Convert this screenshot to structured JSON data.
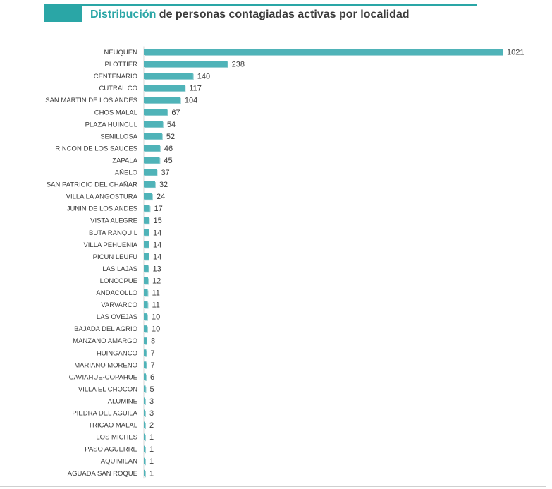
{
  "title": {
    "accent": "Distribución",
    "rest": " de personas contagiadas activas por localidad"
  },
  "colors": {
    "accent": "#2aa6a6",
    "bar": "#4fb3b8",
    "bar_shadow": "#9fd3d6",
    "text": "#3a3a3a"
  },
  "chart_data": {
    "type": "bar",
    "orientation": "horizontal",
    "title": "Distribución de personas contagiadas activas por localidad",
    "xlabel": "",
    "ylabel": "",
    "xlim": [
      0,
      1021
    ],
    "grid": false,
    "legend": "none",
    "categories": [
      "NEUQUEN",
      "PLOTTIER",
      "CENTENARIO",
      "CUTRAL CO",
      "SAN MARTIN DE LOS ANDES",
      "CHOS MALAL",
      "PLAZA HUINCUL",
      "SENILLOSA",
      "RINCON DE LOS SAUCES",
      "ZAPALA",
      "AÑELO",
      "SAN PATRICIO DEL CHAÑAR",
      "VILLA LA ANGOSTURA",
      "JUNIN DE LOS ANDES",
      "VISTA ALEGRE",
      "BUTA RANQUIL",
      "VILLA PEHUENIA",
      "PICUN LEUFU",
      "LAS LAJAS",
      "LONCOPUE",
      "ANDACOLLO",
      "VARVARCO",
      "LAS OVEJAS",
      "BAJADA DEL AGRIO",
      "MANZANO AMARGO",
      "HUINGANCO",
      "MARIANO MORENO",
      "CAVIAHUE-COPAHUE",
      "VILLA EL CHOCON",
      "ALUMINE",
      "PIEDRA DEL AGUILA",
      "TRICAO MALAL",
      "LOS MICHES",
      "PASO AGUERRE",
      "TAQUIMILAN",
      "AGUADA SAN ROQUE"
    ],
    "values": [
      1021,
      238,
      140,
      117,
      104,
      67,
      54,
      52,
      46,
      45,
      37,
      32,
      24,
      17,
      15,
      14,
      14,
      14,
      13,
      12,
      11,
      11,
      10,
      10,
      8,
      7,
      7,
      6,
      5,
      3,
      3,
      2,
      1,
      1,
      1,
      1
    ]
  }
}
